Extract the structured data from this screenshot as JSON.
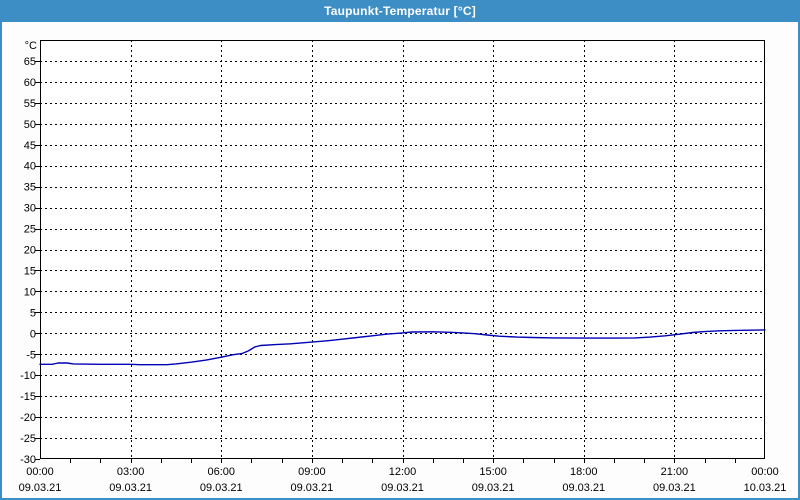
{
  "window": {
    "title": "Taupunkt-Temperatur [°C]"
  },
  "colors": {
    "titlebar_bg": "#3E8EC6",
    "titlebar_text": "#FFFFFF",
    "frame_border": "#3E8EC6",
    "content_bg": "#FCFDFC",
    "plot_bg": "#FFFFFF",
    "axis": "#000000",
    "grid": "#000000",
    "text": "#000000",
    "series_line": "#0000B4"
  },
  "chart_data": {
    "type": "line",
    "title": "Taupunkt-Temperatur [°C]",
    "y_unit": "°C",
    "ylim": [
      -30,
      70
    ],
    "ytick_step": 5,
    "ytick_label_min": -30,
    "ytick_label_max": 65,
    "xlim_hours": [
      0,
      24
    ],
    "x_major_step_hours": 3,
    "x_minor_step_hours": 1,
    "grid_style": "dashed",
    "legend": "none",
    "x_ticks": [
      {
        "time": "00:00",
        "date": "09.03.21"
      },
      {
        "time": "03:00",
        "date": "09.03.21"
      },
      {
        "time": "06:00",
        "date": "09.03.21"
      },
      {
        "time": "09:00",
        "date": "09.03.21"
      },
      {
        "time": "12:00",
        "date": "09.03.21"
      },
      {
        "time": "15:00",
        "date": "09.03.21"
      },
      {
        "time": "18:00",
        "date": "09.03.21"
      },
      {
        "time": "21:00",
        "date": "09.03.21"
      },
      {
        "time": "00:00",
        "date": "10.03.21"
      }
    ],
    "series": [
      {
        "name": "Taupunkt-Temperatur",
        "unit": "°C",
        "points_hour_value": [
          [
            0,
            -7.4
          ],
          [
            0.4,
            -7.4
          ],
          [
            0.6,
            -7.1
          ],
          [
            0.9,
            -7.1
          ],
          [
            1.1,
            -7.3
          ],
          [
            2,
            -7.4
          ],
          [
            3,
            -7.4
          ],
          [
            3.3,
            -7.5
          ],
          [
            4.2,
            -7.5
          ],
          [
            4.5,
            -7.3
          ],
          [
            5,
            -6.9
          ],
          [
            5.5,
            -6.4
          ],
          [
            6,
            -5.7
          ],
          [
            6.4,
            -5.1
          ],
          [
            6.7,
            -4.8
          ],
          [
            6.9,
            -4.2
          ],
          [
            7.1,
            -3.3
          ],
          [
            7.3,
            -2.9
          ],
          [
            7.8,
            -2.7
          ],
          [
            8.3,
            -2.5
          ],
          [
            9,
            -2.1
          ],
          [
            9.5,
            -1.8
          ],
          [
            10,
            -1.4
          ],
          [
            10.5,
            -1.0
          ],
          [
            11,
            -0.6
          ],
          [
            11.5,
            -0.2
          ],
          [
            12,
            0.1
          ],
          [
            12.3,
            0.3
          ],
          [
            13,
            0.35
          ],
          [
            13.6,
            0.25
          ],
          [
            14,
            0.1
          ],
          [
            14.4,
            -0.1
          ],
          [
            14.8,
            -0.4
          ],
          [
            15.2,
            -0.7
          ],
          [
            15.8,
            -0.9
          ],
          [
            16.3,
            -1.0
          ],
          [
            17,
            -1.1
          ],
          [
            18,
            -1.15
          ],
          [
            19,
            -1.15
          ],
          [
            19.7,
            -1.1
          ],
          [
            20.2,
            -0.9
          ],
          [
            20.7,
            -0.6
          ],
          [
            21.2,
            -0.2
          ],
          [
            21.6,
            0.2
          ],
          [
            22,
            0.4
          ],
          [
            22.5,
            0.6
          ],
          [
            23,
            0.7
          ],
          [
            23.5,
            0.75
          ],
          [
            24,
            0.8
          ]
        ]
      }
    ]
  }
}
